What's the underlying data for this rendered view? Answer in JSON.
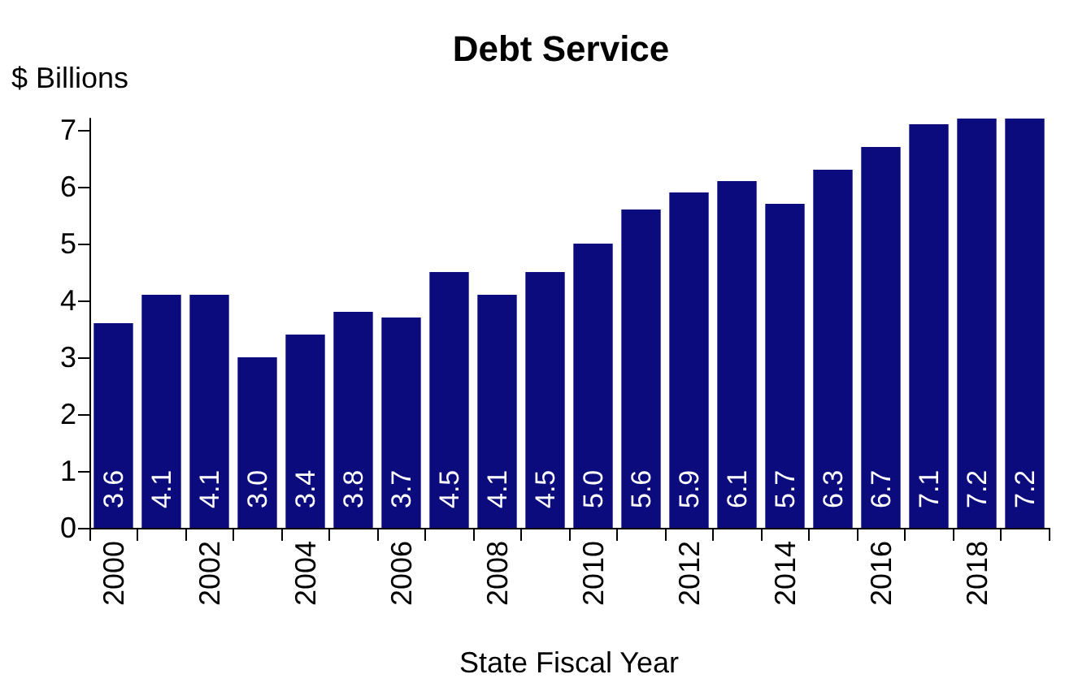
{
  "chart_data": {
    "type": "bar",
    "title": "Debt Service",
    "ylabel": "$ Billions",
    "xlabel": "State Fiscal Year",
    "categories": [
      "2000",
      null,
      "2002",
      null,
      "2004",
      null,
      "2006",
      null,
      "2008",
      null,
      "2010",
      null,
      "2012",
      null,
      "2014",
      null,
      "2016",
      null,
      "2018",
      null
    ],
    "values": [
      3.6,
      4.1,
      4.1,
      3.0,
      3.4,
      3.8,
      3.7,
      4.5,
      4.1,
      4.5,
      5.0,
      5.6,
      5.9,
      6.1,
      5.7,
      6.3,
      6.7,
      7.1,
      7.2,
      7.2
    ],
    "value_labels": [
      "3.6",
      "4.1",
      "4.1",
      "3.0",
      "3.4",
      "3.8",
      "3.7",
      "4.5",
      "4.1",
      "4.5",
      "5.0",
      "5.6",
      "5.9",
      "6.1",
      "5.7",
      "6.3",
      "6.7",
      "7.1",
      "7.2",
      "7.2"
    ],
    "color": "#0b0b7e",
    "ylim": [
      0,
      7.2
    ],
    "yticks": [
      0,
      1,
      2,
      3,
      4,
      5,
      6,
      7
    ],
    "grid": false
  }
}
